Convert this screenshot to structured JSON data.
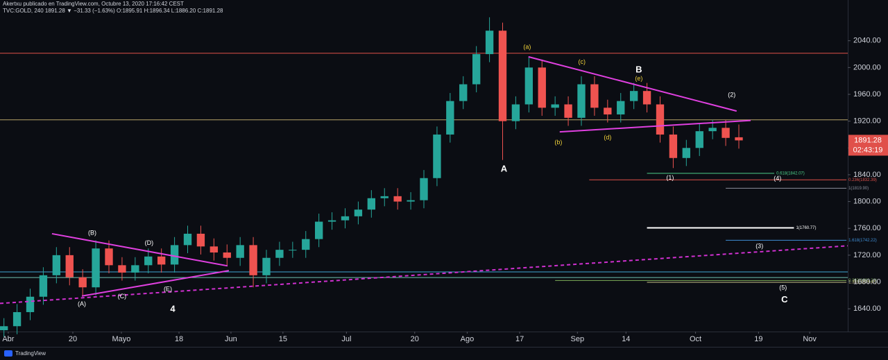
{
  "header": {
    "line1": "Akertxu publicado en TradingView.com, Octubre 13, 2020 17:16:42 CEST",
    "line2": "TVC:GOLD, 240  1891.28  ▼ −31.33 (−1.63%)  O:1895.91 H:1896.34 L:1886.20 C:1891.28"
  },
  "footer": {
    "brand": "TradingView"
  },
  "chart_data": {
    "type": "candlestick",
    "up_color": "#26a69a",
    "down_color": "#ef5350",
    "xlim": [
      -0.3,
      64.3
    ],
    "ylim": [
      1606,
      2078
    ],
    "xticks": [
      {
        "value": 0.33,
        "label": "Abr"
      },
      {
        "value": 5.25,
        "label": "20"
      },
      {
        "value": 8.95,
        "label": "Mayo"
      },
      {
        "value": 13.34,
        "label": "18"
      },
      {
        "value": 17.3,
        "label": "Jun"
      },
      {
        "value": 21.26,
        "label": "15"
      },
      {
        "value": 26.1,
        "label": "Jul"
      },
      {
        "value": 31.3,
        "label": "20"
      },
      {
        "value": 35.3,
        "label": "Ago"
      },
      {
        "value": 39.3,
        "label": "17"
      },
      {
        "value": 43.7,
        "label": "Sep"
      },
      {
        "value": 47.4,
        "label": "14"
      },
      {
        "value": 52.7,
        "label": "Oct"
      },
      {
        "value": 57.5,
        "label": "19"
      },
      {
        "value": 61.4,
        "label": "Nov"
      }
    ],
    "yticks": [
      {
        "value": 1640,
        "label": "1640.00"
      },
      {
        "value": 1680,
        "label": "1680.00"
      },
      {
        "value": 1720,
        "label": "1720.00"
      },
      {
        "value": 1760,
        "label": "1760.00"
      },
      {
        "value": 1800,
        "label": "1800.00"
      },
      {
        "value": 1840,
        "label": "1840.00"
      },
      {
        "value": 1880,
        "label": "1880.00"
      },
      {
        "value": 1920,
        "label": "1920.00"
      },
      {
        "value": 1960,
        "label": "1960.00"
      },
      {
        "value": 2000,
        "label": "2000.00"
      },
      {
        "value": 2040,
        "label": "2040.00"
      }
    ],
    "open": [
      1608,
      1614,
      1635,
      1658,
      1690,
      1720,
      1687,
      1672,
      1730,
      1705,
      1694,
      1705,
      1718,
      1706,
      1735,
      1752,
      1733,
      1724,
      1716,
      1735,
      1690,
      1716,
      1728,
      1728,
      1744,
      1770,
      1772,
      1778,
      1788,
      1805,
      1808,
      1800,
      1802,
      1835,
      1900,
      1950,
      1975,
      2020,
      2055,
      1920,
      1945,
      2000,
      1940,
      1945,
      1925,
      1975,
      1940,
      1930,
      1950,
      1965,
      1945,
      1900,
      1865,
      1880,
      1905,
      1910,
      1895.91
    ],
    "high": [
      1626,
      1647,
      1670,
      1702,
      1732,
      1732,
      1699,
      1742,
      1742,
      1717,
      1717,
      1730,
      1730,
      1747,
      1764,
      1764,
      1745,
      1736,
      1747,
      1747,
      1728,
      1740,
      1740,
      1756,
      1782,
      1784,
      1790,
      1800,
      1817,
      1820,
      1820,
      1814,
      1847,
      1912,
      1962,
      1987,
      2032,
      2075,
      2067,
      1957,
      2015,
      2012,
      1957,
      1957,
      1987,
      1987,
      1952,
      1962,
      1977,
      1977,
      1957,
      1912,
      1892,
      1917,
      1922,
      1922,
      1915
    ],
    "low": [
      1598,
      1602,
      1623,
      1646,
      1678,
      1675,
      1660,
      1660,
      1693,
      1682,
      1682,
      1693,
      1694,
      1694,
      1723,
      1721,
      1712,
      1704,
      1704,
      1672,
      1678,
      1704,
      1716,
      1716,
      1732,
      1758,
      1760,
      1766,
      1776,
      1793,
      1788,
      1788,
      1790,
      1823,
      1888,
      1938,
      1963,
      2008,
      1862,
      1908,
      1933,
      1928,
      1928,
      1913,
      1913,
      1928,
      1918,
      1918,
      1938,
      1933,
      1888,
      1850,
      1853,
      1868,
      1893,
      1883,
      1879
    ],
    "close": [
      1614,
      1635,
      1658,
      1690,
      1720,
      1687,
      1672,
      1730,
      1705,
      1694,
      1705,
      1718,
      1706,
      1735,
      1752,
      1733,
      1724,
      1716,
      1735,
      1690,
      1716,
      1728,
      1728,
      1744,
      1770,
      1772,
      1778,
      1788,
      1805,
      1808,
      1800,
      1802,
      1835,
      1900,
      1950,
      1975,
      2020,
      2055,
      1920,
      1945,
      2000,
      1940,
      1945,
      1925,
      1975,
      1940,
      1930,
      1950,
      1965,
      1945,
      1900,
      1865,
      1880,
      1905,
      1910,
      1895,
      1891.28
    ],
    "last_price": 1891.28,
    "countdown": "02:43:19",
    "levels": [
      {
        "value": 2021.3,
        "color": "#e0504a"
      },
      {
        "value": 1921.9,
        "color": "#b8a36a"
      },
      {
        "value": 1695,
        "color": "#3fa7d6"
      },
      {
        "value": 1686.6,
        "color": "#6fc2b0"
      }
    ],
    "fib_levels": [
      {
        "value": 1842.07,
        "label": "0.618(1842.07)",
        "from": 49.0,
        "to": 58.7,
        "color": "#4cd08a"
      },
      {
        "value": 1832.39,
        "label": "0.236(1832.39)",
        "from": 44.6,
        "to": 64.2,
        "color": "#e0504a"
      },
      {
        "value": 1819.9,
        "label": "1(1819.90)",
        "from": 55.0,
        "to": 64.2,
        "color": "#8a8f9c"
      },
      {
        "value": 1760.77,
        "label": "1(1760.77)",
        "from": 49.0,
        "to": 60.2,
        "color": "#ffffff"
      },
      {
        "value": 1742.22,
        "label": "1.618(1742.22)",
        "from": 55.0,
        "to": 64.2,
        "color": "#3f8fd6"
      },
      {
        "value": 1682.21,
        "label": "0.382(1682.21)",
        "from": 42.0,
        "to": 64.2,
        "color": "#7fae5a"
      },
      {
        "value": 1679.47,
        "label": "1.382(1679.47)",
        "from": 49.0,
        "to": 64.2,
        "color": "#c9c08a"
      }
    ],
    "trendlines": [
      {
        "points": [
          [
            -0.3,
            1648
          ],
          [
            64.3,
            1734
          ]
        ],
        "color": "#d030d0",
        "dashed": true
      },
      {
        "points": [
          [
            3.66,
            1752
          ],
          [
            17.04,
            1704
          ]
        ],
        "color": "#e040e0",
        "dashed": false
      },
      {
        "points": [
          [
            5.94,
            1659
          ],
          [
            17.14,
            1697
          ]
        ],
        "color": "#e040e0",
        "dashed": false
      },
      {
        "points": [
          [
            39.97,
            2016
          ],
          [
            55.83,
            1935
          ]
        ],
        "color": "#e040e0",
        "dashed": false
      },
      {
        "points": [
          [
            42.35,
            1904
          ],
          [
            56.9,
            1921
          ]
        ],
        "color": "#e040e0",
        "dashed": false
      }
    ],
    "wave_labels": [
      {
        "text": "(A)",
        "x": 5.94,
        "y": 1647,
        "color": "#ffffff"
      },
      {
        "text": "(B)",
        "x": 6.73,
        "y": 1753,
        "color": "#ffffff"
      },
      {
        "text": "(C)",
        "x": 9.0,
        "y": 1658,
        "color": "#ffffff"
      },
      {
        "text": "(D)",
        "x": 11.06,
        "y": 1738,
        "color": "#ffffff"
      },
      {
        "text": "(E)",
        "x": 12.49,
        "y": 1669,
        "color": "#ffffff"
      },
      {
        "text": "4",
        "x": 12.86,
        "y": 1639,
        "color": "#ffffff"
      },
      {
        "text": "A",
        "x": 38.1,
        "y": 1848,
        "color": "#ffffff"
      },
      {
        "text": "(a)",
        "x": 39.87,
        "y": 2030,
        "color": "#f2d33a"
      },
      {
        "text": "(b)",
        "x": 42.25,
        "y": 1888,
        "color": "#f2d33a"
      },
      {
        "text": "(c)",
        "x": 44.04,
        "y": 2008,
        "color": "#f2d33a"
      },
      {
        "text": "(d)",
        "x": 46.0,
        "y": 1895,
        "color": "#f2d33a"
      },
      {
        "text": "B",
        "x": 48.38,
        "y": 1996,
        "color": "#ffffff"
      },
      {
        "text": "(e)",
        "x": 48.38,
        "y": 1983,
        "color": "#f2d33a"
      },
      {
        "text": "(2)",
        "x": 55.46,
        "y": 1959,
        "color": "#ffffff"
      },
      {
        "text": "(1)",
        "x": 50.76,
        "y": 1835,
        "color": "#ffffff"
      },
      {
        "text": "(4)",
        "x": 58.95,
        "y": 1834,
        "color": "#ffffff"
      },
      {
        "text": "(3)",
        "x": 57.57,
        "y": 1733,
        "color": "#ffffff"
      },
      {
        "text": "(5)",
        "x": 59.37,
        "y": 1671,
        "color": "#ffffff"
      },
      {
        "text": "C",
        "x": 59.48,
        "y": 1653,
        "color": "#ffffff"
      }
    ]
  }
}
